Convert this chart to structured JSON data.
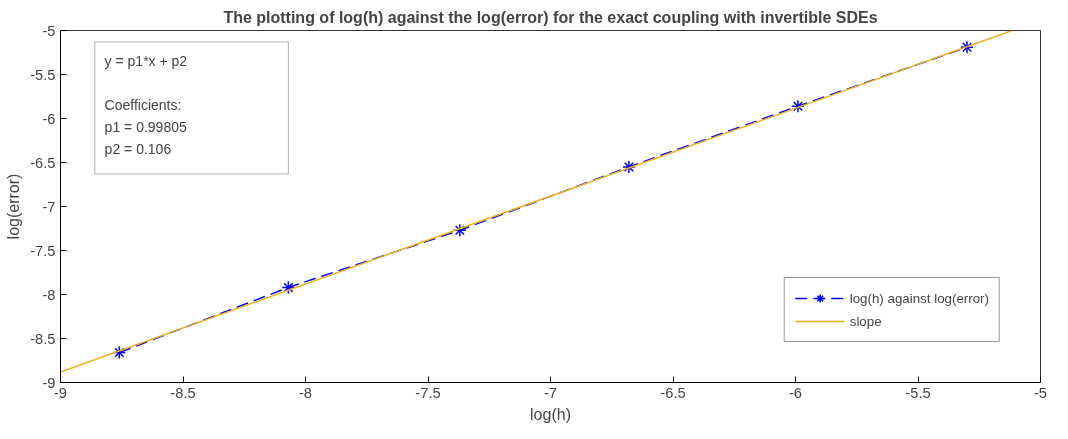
{
  "chart_data": {
    "type": "line",
    "title": "The plotting of log(h) against the log(error) for the exact coupling with invertible SDEs",
    "xlabel": "log(h)",
    "ylabel": "log(error)",
    "xlim": [
      -9,
      -5
    ],
    "ylim": [
      -9,
      -5
    ],
    "xticks": [
      -9,
      -8.5,
      -8,
      -7.5,
      -7,
      -6.5,
      -6,
      -5.5,
      -5
    ],
    "yticks": [
      -9,
      -8.5,
      -8,
      -7.5,
      -7,
      -6.5,
      -6,
      -5.5,
      -5
    ],
    "grid": false,
    "legend": "bottom right",
    "series": [
      {
        "name": "log(h) against log(error)",
        "color": "#0000ff",
        "marker": "cross",
        "line_style": "dashed",
        "x": [
          -8.76,
          -8.07,
          -7.37,
          -6.68,
          -5.99,
          -5.3
        ],
        "values": [
          -8.66,
          -7.92,
          -7.27,
          -6.55,
          -5.86,
          -5.19
        ]
      },
      {
        "name": "slope",
        "color": "#edb120",
        "marker": "none",
        "line_style": "solid",
        "x": [
          -9,
          -5.116
        ],
        "values": [
          -8.88,
          -5
        ]
      }
    ],
    "annotations": [
      "y = p1*x + p2",
      "Coefficients:",
      "  p1 = 0.99805",
      "  p2 = 0.106"
    ]
  }
}
